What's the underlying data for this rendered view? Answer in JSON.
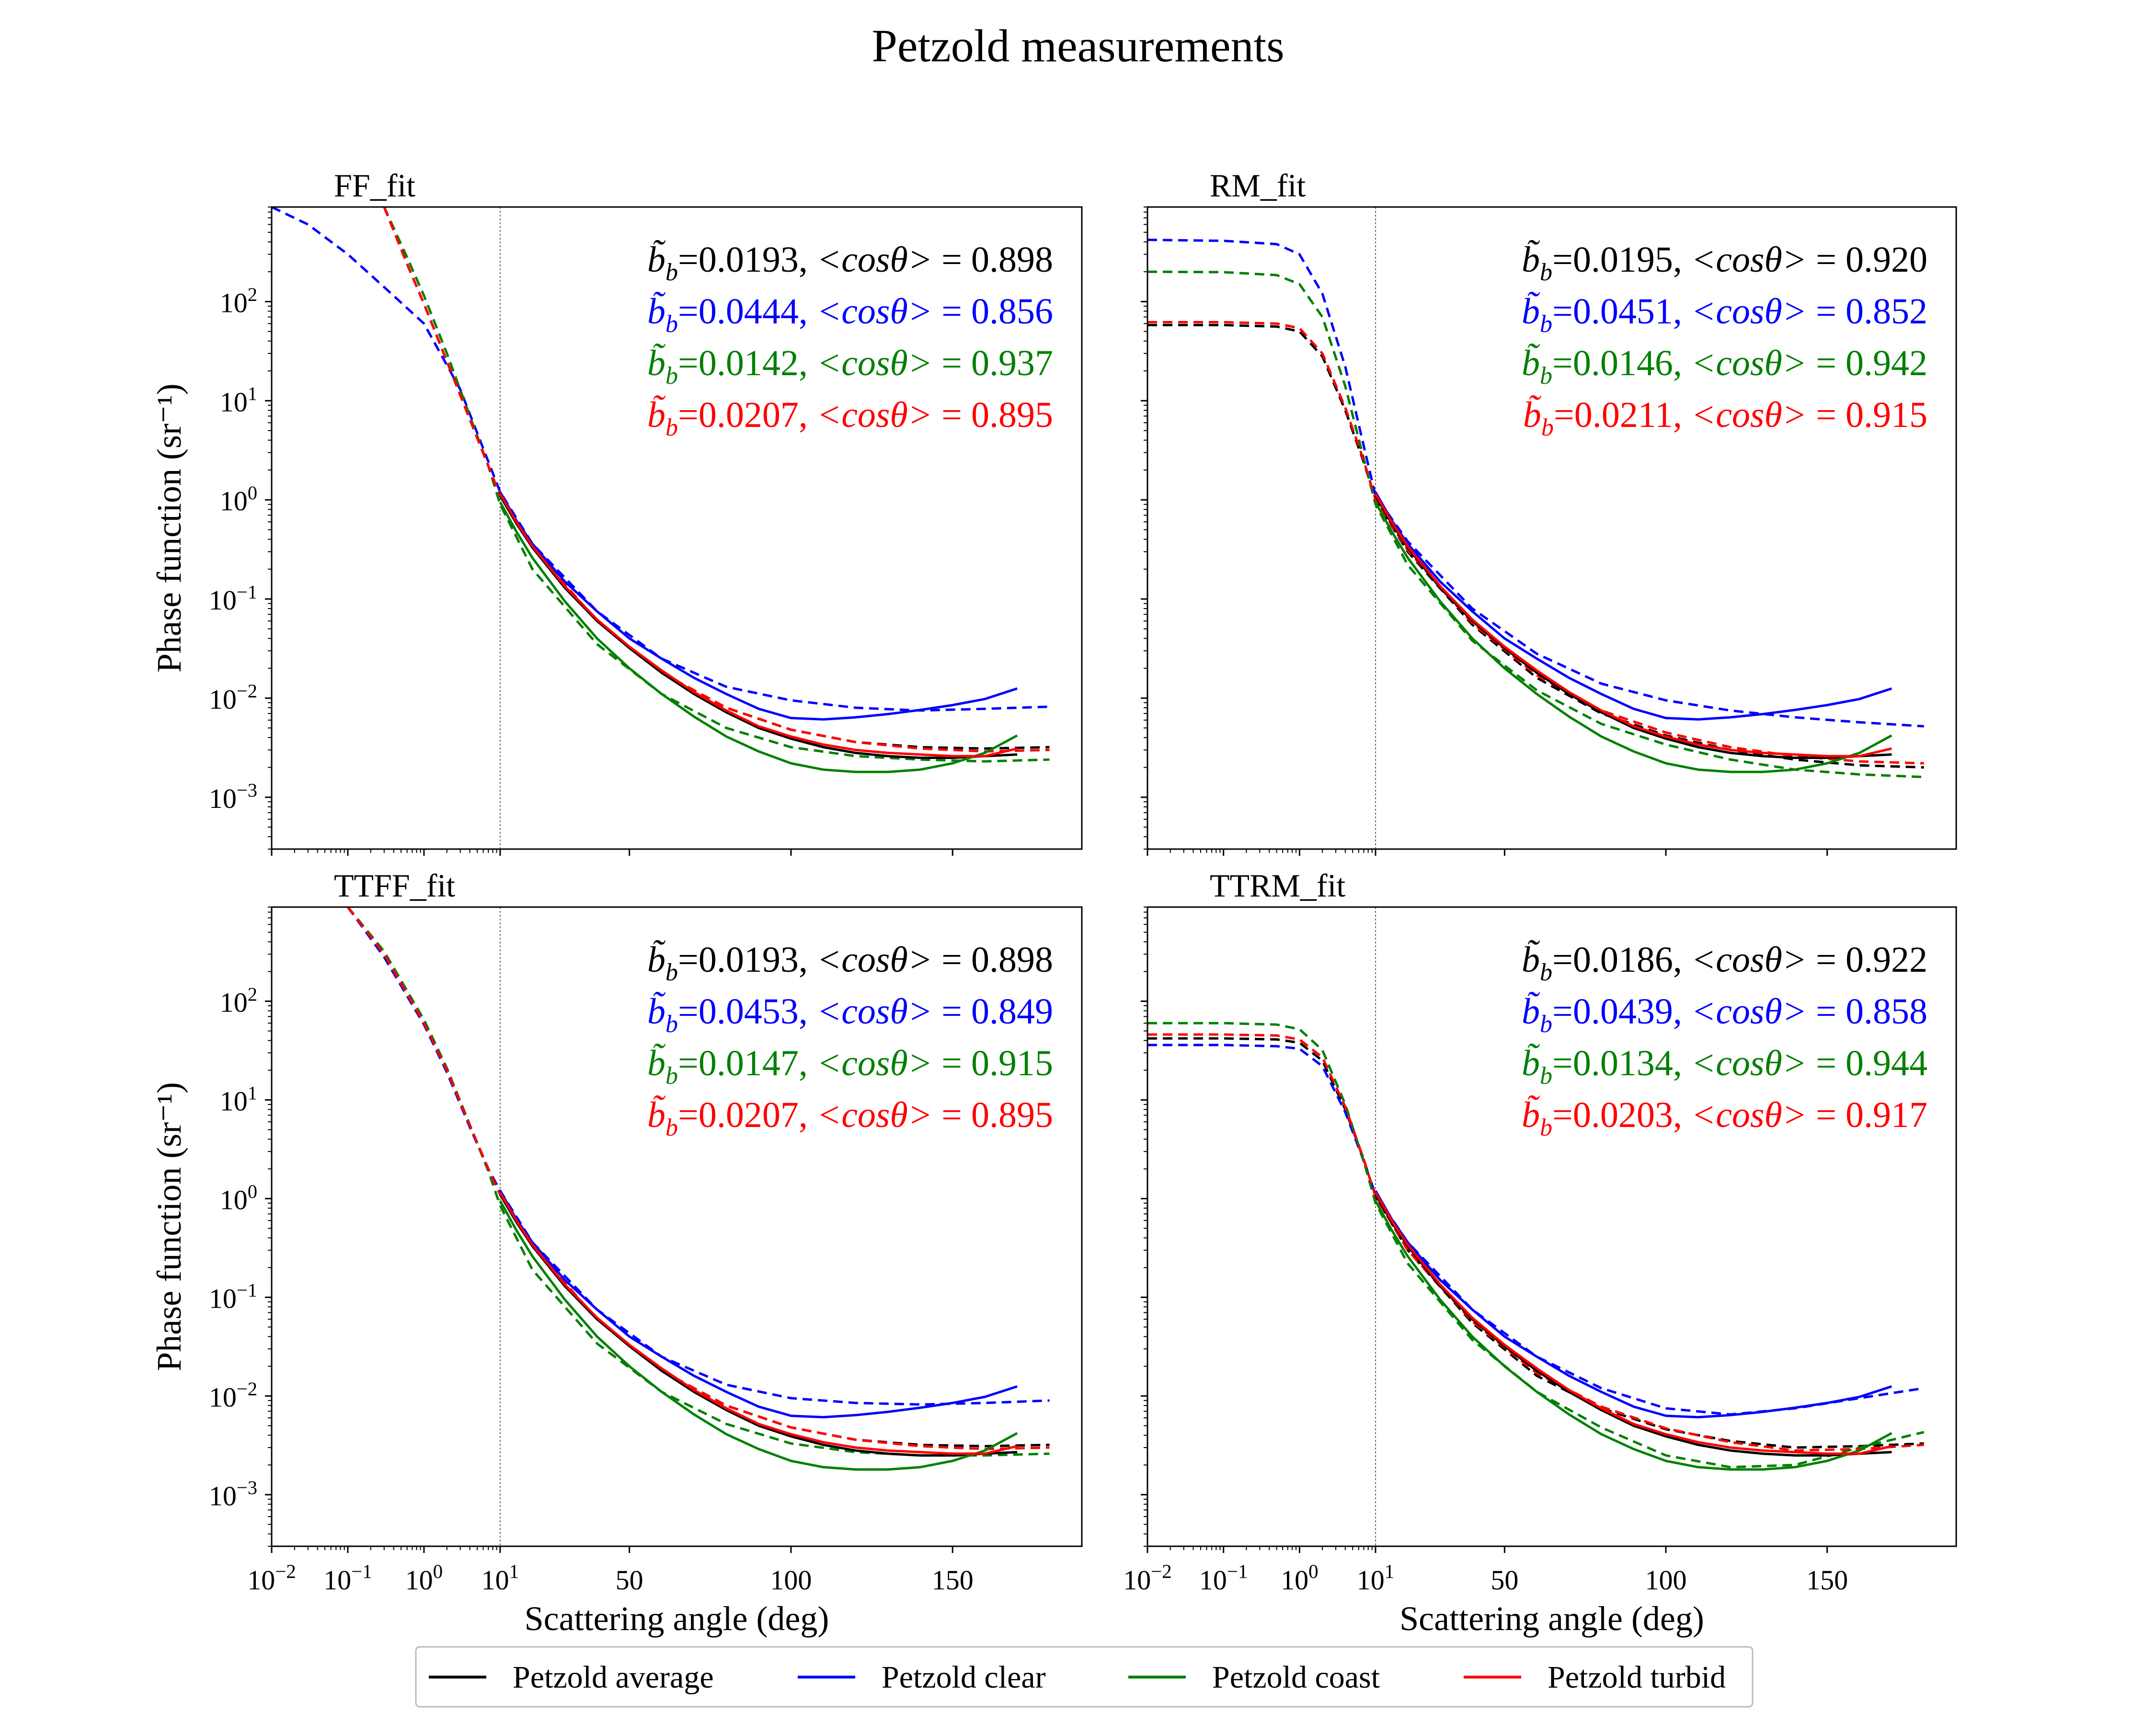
{
  "figure": {
    "title": "Petzold measurements"
  },
  "colors": {
    "average": "#000000",
    "clear": "#0000ff",
    "coast": "#008000",
    "turbid": "#ff0000"
  },
  "legend": {
    "placement": "bottom-center",
    "entries": [
      "Petzold average",
      "Petzold clear",
      "Petzold coast",
      "Petzold turbid"
    ]
  },
  "chart_data": [
    {
      "title": "FF_fit",
      "type": "line",
      "ylabel": "Phase function (sr⁻¹)",
      "xlabel": "",
      "x_axis": "log scale 10^-2 to 10^1 deg, linear scale 10 to 180 deg",
      "ylim": [
        0.0003,
        900
      ],
      "yscale": "log",
      "annotations": [
        {
          "series": "average",
          "bb": "0.0193",
          "cos": "0.898"
        },
        {
          "series": "clear",
          "bb": "0.0444",
          "cos": "0.856"
        },
        {
          "series": "coast",
          "bb": "0.0142",
          "cos": "0.937"
        },
        {
          "series": "turbid",
          "bb": "0.0207",
          "cos": "0.895"
        }
      ],
      "fits": {
        "average": {
          "x": [
            0.3,
            0.6,
            1,
            2,
            4,
            7,
            10,
            20,
            40,
            60,
            80,
            100,
            120,
            140,
            160,
            180
          ],
          "y": [
            900,
            240,
            95,
            25,
            6.5,
            2.2,
            1.1,
            0.33,
            0.06,
            0.018,
            0.008,
            0.0048,
            0.0036,
            0.0032,
            0.0031,
            0.0032
          ]
        },
        "clear": {
          "x": [
            0.01,
            0.03,
            0.1,
            0.3,
            1,
            3,
            10,
            20,
            40,
            60,
            80,
            100,
            120,
            140,
            160,
            180
          ],
          "y": [
            900,
            600,
            300,
            140,
            60,
            13,
            1.2,
            0.36,
            0.075,
            0.025,
            0.013,
            0.0095,
            0.008,
            0.0075,
            0.0078,
            0.0082
          ]
        },
        "coast": {
          "x": [
            0.3,
            0.6,
            1,
            2,
            4,
            7,
            10,
            20,
            40,
            60,
            80,
            100,
            120,
            140,
            160,
            180
          ],
          "y": [
            900,
            280,
            115,
            30,
            7,
            2.2,
            0.9,
            0.2,
            0.035,
            0.011,
            0.005,
            0.0032,
            0.0026,
            0.0024,
            0.0023,
            0.0024
          ]
        },
        "turbid": {
          "x": [
            0.3,
            0.6,
            1,
            2,
            4,
            7,
            10,
            20,
            40,
            60,
            80,
            100,
            120,
            140,
            160,
            180
          ],
          "y": [
            900,
            240,
            95,
            25,
            6.5,
            2.2,
            1.1,
            0.33,
            0.06,
            0.018,
            0.008,
            0.0048,
            0.0036,
            0.0031,
            0.0029,
            0.003
          ]
        }
      }
    },
    {
      "title": "RM_fit",
      "type": "line",
      "ylabel": "",
      "xlabel": "",
      "x_axis": "log scale 10^-2 to 10^1 deg, linear scale 10 to 180 deg",
      "ylim": [
        0.0003,
        900
      ],
      "yscale": "log",
      "annotations": [
        {
          "series": "average",
          "bb": "0.0195",
          "cos": "0.920"
        },
        {
          "series": "clear",
          "bb": "0.0451",
          "cos": "0.852"
        },
        {
          "series": "coast",
          "bb": "0.0146",
          "cos": "0.942"
        },
        {
          "series": "turbid",
          "bb": "0.0211",
          "cos": "0.915"
        }
      ],
      "fits": {
        "average": {
          "x": [
            0.01,
            0.1,
            0.5,
            1,
            2,
            4,
            7,
            10,
            20,
            40,
            60,
            80,
            100,
            120,
            140,
            160,
            180
          ],
          "y": [
            58,
            58,
            56,
            50,
            28,
            8,
            2.4,
            1.0,
            0.3,
            0.055,
            0.016,
            0.007,
            0.0042,
            0.003,
            0.0024,
            0.0021,
            0.002
          ]
        },
        "clear": {
          "x": [
            0.01,
            0.1,
            0.5,
            1,
            2,
            4,
            7,
            10,
            20,
            40,
            60,
            80,
            100,
            120,
            140,
            160,
            180
          ],
          "y": [
            420,
            410,
            380,
            300,
            120,
            22,
            3.5,
            1.1,
            0.38,
            0.08,
            0.028,
            0.014,
            0.0095,
            0.0075,
            0.0064,
            0.0057,
            0.0052
          ]
        },
        "coast": {
          "x": [
            0.01,
            0.1,
            0.5,
            1,
            2,
            4,
            7,
            10,
            20,
            40,
            60,
            80,
            100,
            120,
            140,
            160,
            180
          ],
          "y": [
            200,
            198,
            185,
            150,
            70,
            14,
            2.6,
            0.9,
            0.22,
            0.038,
            0.012,
            0.0055,
            0.0034,
            0.0024,
            0.0019,
            0.0017,
            0.0016
          ]
        },
        "turbid": {
          "x": [
            0.01,
            0.1,
            0.5,
            1,
            2,
            4,
            7,
            10,
            20,
            40,
            60,
            80,
            100,
            120,
            140,
            160,
            180
          ],
          "y": [
            62,
            62,
            60,
            54,
            30,
            8.5,
            2.5,
            1.0,
            0.31,
            0.057,
            0.017,
            0.0075,
            0.0045,
            0.0032,
            0.0026,
            0.0023,
            0.0022
          ]
        }
      }
    },
    {
      "title": "TTFF_fit",
      "type": "line",
      "ylabel": "Phase function (sr⁻¹)",
      "xlabel": "Scattering angle (deg)",
      "x_axis": "log scale 10^-2 to 10^1 deg, linear scale 10 to 180 deg",
      "ylim": [
        0.0003,
        900
      ],
      "yscale": "log",
      "annotations": [
        {
          "series": "average",
          "bb": "0.0193",
          "cos": "0.898"
        },
        {
          "series": "clear",
          "bb": "0.0453",
          "cos": "0.849"
        },
        {
          "series": "coast",
          "bb": "0.0147",
          "cos": "0.915"
        },
        {
          "series": "turbid",
          "bb": "0.0207",
          "cos": "0.895"
        }
      ],
      "fits": {
        "average": {
          "x": [
            0.1,
            0.3,
            1,
            2,
            4,
            7,
            10,
            20,
            40,
            60,
            80,
            100,
            120,
            140,
            160,
            180
          ],
          "y": [
            900,
            300,
            60,
            20,
            5.5,
            2.0,
            1.1,
            0.33,
            0.06,
            0.018,
            0.008,
            0.0048,
            0.0036,
            0.0032,
            0.0031,
            0.0032
          ]
        },
        "clear": {
          "x": [
            0.1,
            0.3,
            1,
            2,
            4,
            7,
            10,
            20,
            40,
            60,
            80,
            100,
            120,
            140,
            160,
            180
          ],
          "y": [
            900,
            280,
            58,
            19,
            5.3,
            2.0,
            1.2,
            0.36,
            0.075,
            0.025,
            0.013,
            0.0095,
            0.0085,
            0.0082,
            0.0085,
            0.009
          ]
        },
        "coast": {
          "x": [
            0.1,
            0.3,
            1,
            2,
            4,
            7,
            10,
            20,
            40,
            60,
            80,
            100,
            120,
            140,
            160,
            180
          ],
          "y": [
            900,
            320,
            65,
            21,
            5.6,
            1.9,
            0.85,
            0.19,
            0.034,
            0.011,
            0.0052,
            0.0033,
            0.0027,
            0.0025,
            0.0025,
            0.0026
          ]
        },
        "turbid": {
          "x": [
            0.1,
            0.3,
            1,
            2,
            4,
            7,
            10,
            20,
            40,
            60,
            80,
            100,
            120,
            140,
            160,
            180
          ],
          "y": [
            900,
            300,
            60,
            20,
            5.5,
            2.0,
            1.1,
            0.33,
            0.06,
            0.018,
            0.008,
            0.0048,
            0.0036,
            0.0031,
            0.0029,
            0.003
          ]
        }
      }
    },
    {
      "title": "TTRM_fit",
      "type": "line",
      "ylabel": "",
      "xlabel": "Scattering angle (deg)",
      "x_axis": "log scale 10^-2 to 10^1 deg, linear scale 10 to 180 deg",
      "ylim": [
        0.0003,
        900
      ],
      "yscale": "log",
      "annotations": [
        {
          "series": "average",
          "bb": "0.0186",
          "cos": "0.922"
        },
        {
          "series": "clear",
          "bb": "0.0439",
          "cos": "0.858"
        },
        {
          "series": "coast",
          "bb": "0.0134",
          "cos": "0.944"
        },
        {
          "series": "turbid",
          "bb": "0.0203",
          "cos": "0.917"
        }
      ],
      "fits": {
        "average": {
          "x": [
            0.01,
            0.1,
            0.5,
            1,
            2,
            4,
            7,
            10,
            20,
            40,
            60,
            80,
            100,
            120,
            140,
            160,
            180
          ],
          "y": [
            42,
            42,
            41,
            38,
            25,
            8,
            2.5,
            1.05,
            0.3,
            0.055,
            0.016,
            0.0075,
            0.0046,
            0.0035,
            0.003,
            0.0031,
            0.0033
          ]
        },
        "clear": {
          "x": [
            0.01,
            0.1,
            0.5,
            1,
            2,
            4,
            7,
            10,
            20,
            40,
            60,
            80,
            100,
            120,
            140,
            160,
            180
          ],
          "y": [
            36,
            36,
            35,
            33,
            22,
            7.5,
            2.4,
            1.1,
            0.36,
            0.075,
            0.025,
            0.012,
            0.0075,
            0.0065,
            0.0075,
            0.0095,
            0.012
          ]
        },
        "coast": {
          "x": [
            0.01,
            0.1,
            0.5,
            1,
            2,
            4,
            7,
            10,
            20,
            40,
            60,
            80,
            100,
            120,
            140,
            160,
            180
          ],
          "y": [
            60,
            60,
            58,
            52,
            32,
            9,
            2.4,
            0.9,
            0.22,
            0.037,
            0.011,
            0.0048,
            0.0025,
            0.0019,
            0.002,
            0.003,
            0.0043
          ]
        },
        "turbid": {
          "x": [
            0.01,
            0.1,
            0.5,
            1,
            2,
            4,
            7,
            10,
            20,
            40,
            60,
            80,
            100,
            120,
            140,
            160,
            180
          ],
          "y": [
            46,
            46,
            45,
            41,
            27,
            8.5,
            2.5,
            1.05,
            0.3,
            0.057,
            0.017,
            0.0078,
            0.0047,
            0.0034,
            0.0028,
            0.0029,
            0.0032
          ]
        }
      }
    }
  ],
  "measurements": {
    "angles": [
      10,
      15,
      20,
      30,
      40,
      50,
      60,
      70,
      80,
      90,
      100,
      110,
      120,
      130,
      140,
      150,
      160,
      170
    ],
    "average": [
      1.1,
      0.58,
      0.33,
      0.13,
      0.06,
      0.032,
      0.018,
      0.011,
      0.0072,
      0.005,
      0.0039,
      0.0032,
      0.0028,
      0.0026,
      0.0025,
      0.0025,
      0.0026,
      0.0027
    ],
    "clear": [
      1.2,
      0.62,
      0.36,
      0.15,
      0.075,
      0.04,
      0.025,
      0.016,
      0.011,
      0.0078,
      0.0063,
      0.0061,
      0.0064,
      0.0069,
      0.0076,
      0.0085,
      0.0098,
      0.0125
    ],
    "coast": [
      0.95,
      0.48,
      0.26,
      0.095,
      0.04,
      0.02,
      0.011,
      0.0065,
      0.0041,
      0.0029,
      0.0022,
      0.0019,
      0.0018,
      0.0018,
      0.0019,
      0.0022,
      0.0028,
      0.0042
    ],
    "turbid": [
      1.15,
      0.6,
      0.34,
      0.135,
      0.062,
      0.033,
      0.019,
      0.0115,
      0.0075,
      0.0052,
      0.0041,
      0.0034,
      0.003,
      0.0028,
      0.0027,
      0.0026,
      0.0026,
      0.0031
    ]
  }
}
